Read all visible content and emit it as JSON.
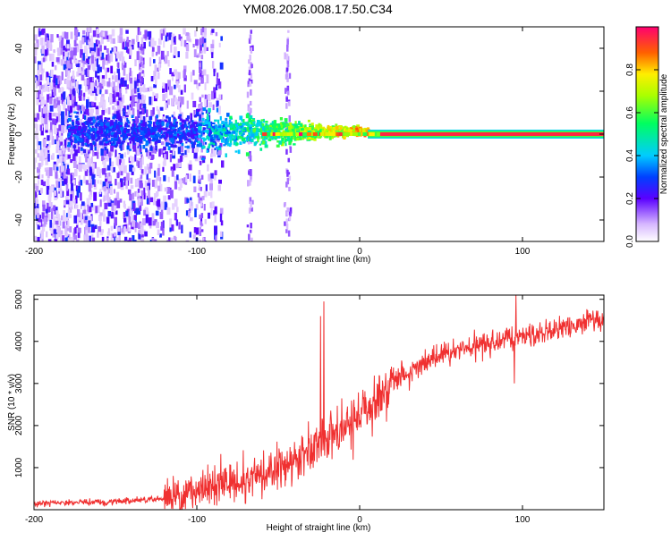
{
  "title": "YM08.2026.008.17.50.C34",
  "chart_data": [
    {
      "type": "heatmap",
      "xlabel": "Height of straight line (km)",
      "ylabel": "Frequency (Hz)",
      "xlim": [
        -200,
        150
      ],
      "ylim": [
        -50,
        50
      ],
      "xticks": [
        -200,
        -100,
        0,
        100
      ],
      "yticks": [
        -40,
        -20,
        0,
        20,
        40
      ],
      "colorbar": {
        "label": "Normalized spectral amplitude",
        "range": [
          0.0,
          1.0
        ],
        "ticks": [
          0.0,
          0.2,
          0.4,
          0.6,
          0.8
        ]
      },
      "features": {
        "noise_region_x": [
          -200,
          -95
        ],
        "converging_band_x": [
          -100,
          5
        ],
        "steady_line_x": [
          5,
          150
        ],
        "steady_line_frequency_hz": 0,
        "steady_line_amplitude": 0.95
      }
    },
    {
      "type": "line",
      "xlabel": "Height of straight line (km)",
      "ylabel": "SNR (10 * v/v)",
      "xlim": [
        -200,
        150
      ],
      "ylim": [
        0,
        5100
      ],
      "xticks": [
        -200,
        -100,
        0,
        100
      ],
      "yticks": [
        1000,
        2000,
        3000,
        4000,
        5000
      ],
      "series_color": "#f03030",
      "trend": {
        "x": [
          -200,
          -150,
          -120,
          -100,
          -80,
          -60,
          -40,
          -20,
          0,
          20,
          40,
          60,
          80,
          100,
          120,
          150
        ],
        "y": [
          150,
          200,
          250,
          400,
          700,
          800,
          1100,
          1800,
          2200,
          3100,
          3500,
          3800,
          3950,
          4100,
          4300,
          4550
        ]
      },
      "spikes": [
        {
          "x": -22,
          "y": 4950
        },
        {
          "x": -24,
          "y": 4600
        },
        {
          "x": 96,
          "y": 5100
        },
        {
          "x": 95,
          "y": 3000
        }
      ]
    }
  ]
}
